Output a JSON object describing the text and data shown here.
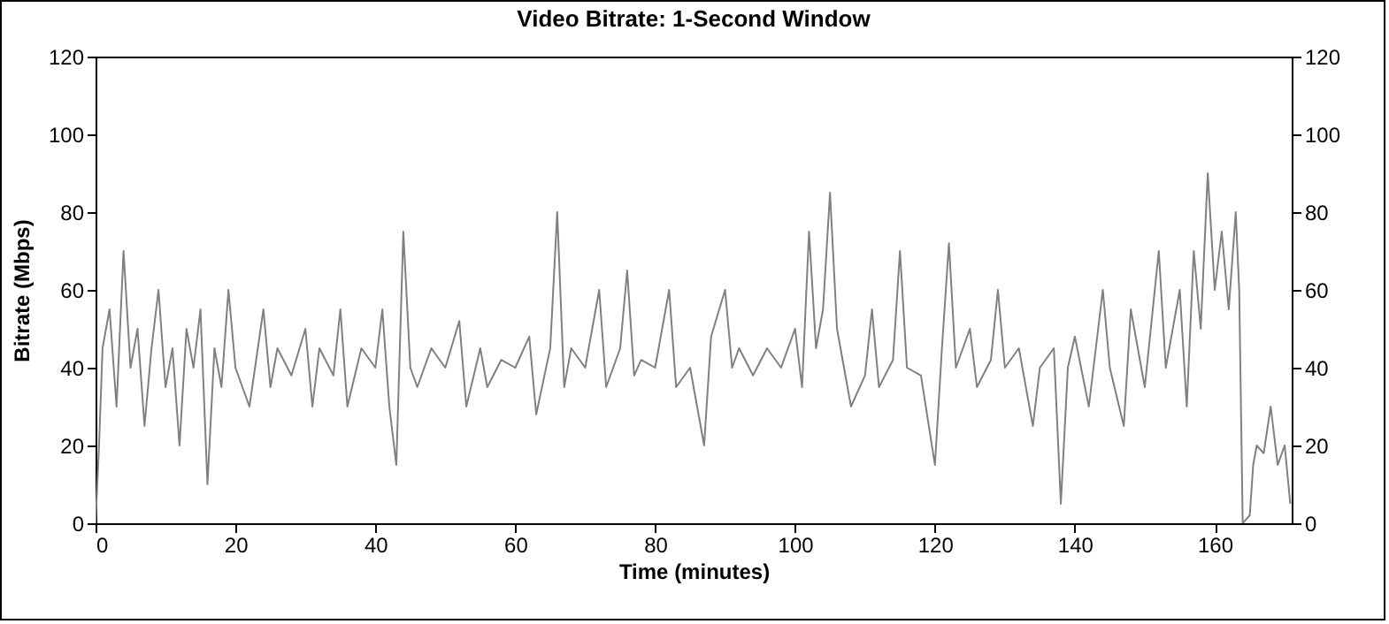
{
  "chart_data": {
    "type": "line",
    "title": "Video Bitrate: 1-Second Window",
    "xlabel": "Time (minutes)",
    "ylabel": "Bitrate (Mbps)",
    "x": [
      0,
      0.5,
      1,
      2,
      3,
      4,
      5,
      6,
      7,
      8,
      9,
      10,
      11,
      12,
      13,
      14,
      15,
      16,
      17,
      18,
      19,
      20,
      22,
      24,
      25,
      26,
      28,
      30,
      31,
      32,
      34,
      35,
      36,
      38,
      40,
      41,
      42,
      43,
      44,
      45,
      46,
      48,
      50,
      52,
      53,
      55,
      56,
      58,
      60,
      62,
      63,
      65,
      66,
      67,
      68,
      70,
      72,
      73,
      75,
      76,
      77,
      78,
      80,
      82,
      83,
      85,
      86,
      87,
      88,
      90,
      91,
      92,
      94,
      96,
      98,
      100,
      101,
      102,
      103,
      104,
      105,
      106,
      107,
      108,
      110,
      111,
      112,
      114,
      115,
      116,
      118,
      120,
      121,
      122,
      123,
      125,
      126,
      128,
      129,
      130,
      132,
      134,
      135,
      137,
      138,
      139,
      140,
      142,
      144,
      145,
      147,
      148,
      150,
      152,
      153,
      155,
      156,
      157,
      158,
      159,
      160,
      161,
      162,
      163,
      163.5,
      164,
      165,
      165.5,
      166,
      167,
      168,
      169,
      170,
      170.8
    ],
    "series": [
      {
        "color": "#808080",
        "values": [
          0,
          20,
          45,
          55,
          30,
          70,
          40,
          50,
          25,
          45,
          60,
          35,
          45,
          20,
          50,
          40,
          55,
          10,
          45,
          35,
          60,
          40,
          30,
          55,
          35,
          45,
          38,
          50,
          30,
          45,
          38,
          55,
          30,
          45,
          40,
          55,
          30,
          15,
          75,
          40,
          35,
          45,
          40,
          52,
          30,
          45,
          35,
          42,
          40,
          48,
          28,
          45,
          80,
          35,
          45,
          40,
          60,
          35,
          45,
          65,
          38,
          42,
          40,
          60,
          35,
          40,
          30,
          20,
          48,
          60,
          40,
          45,
          38,
          45,
          40,
          50,
          35,
          75,
          45,
          55,
          85,
          50,
          40,
          30,
          38,
          55,
          35,
          42,
          70,
          40,
          38,
          15,
          45,
          72,
          40,
          50,
          35,
          42,
          60,
          40,
          45,
          25,
          40,
          45,
          5,
          40,
          48,
          30,
          60,
          40,
          25,
          55,
          35,
          70,
          40,
          60,
          30,
          70,
          50,
          90,
          60,
          75,
          55,
          80,
          60,
          0,
          2,
          15,
          20,
          18,
          30,
          15,
          20,
          5
        ]
      }
    ],
    "xlim": [
      0,
      171
    ],
    "xticks": [
      0,
      20,
      40,
      60,
      80,
      100,
      120,
      140,
      160
    ],
    "ylim": [
      0,
      120
    ],
    "yticks": [
      0,
      20,
      40,
      60,
      80,
      100,
      120
    ],
    "y2lim": [
      0,
      120
    ],
    "y2ticks": [
      0,
      20,
      40,
      60,
      80,
      100,
      120
    ]
  }
}
